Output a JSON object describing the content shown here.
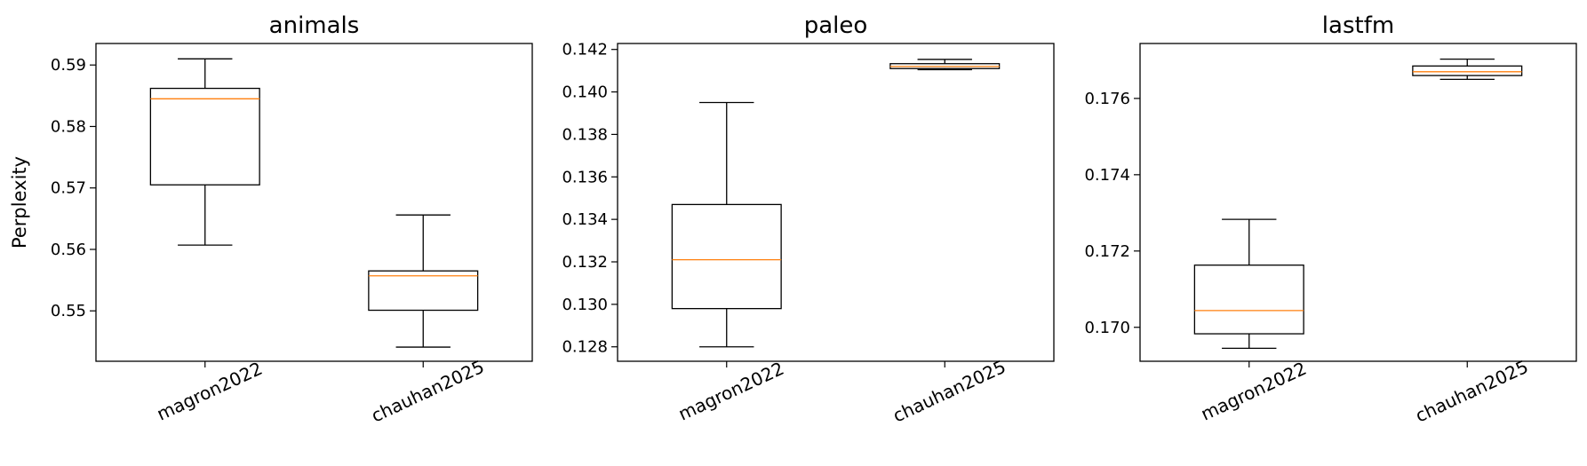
{
  "chart_data": [
    {
      "type": "box",
      "title": "animals",
      "ylabel": "Perplexity",
      "xlabel": "",
      "categories": [
        "magron2022",
        "chauhan2025"
      ],
      "ylim": [
        0.5418,
        0.5935
      ],
      "yticks": [
        0.55,
        0.56,
        0.57,
        0.58,
        0.59
      ],
      "ytick_labels": [
        "0.55",
        "0.56",
        "0.57",
        "0.58",
        "0.59"
      ],
      "boxes": [
        {
          "whisker_low": 0.5607,
          "q1": 0.5705,
          "median": 0.5845,
          "q3": 0.5862,
          "whisker_high": 0.591
        },
        {
          "whisker_low": 0.5441,
          "q1": 0.5501,
          "median": 0.5557,
          "q3": 0.5565,
          "whisker_high": 0.5656
        }
      ],
      "grid": false
    },
    {
      "type": "box",
      "title": "paleo",
      "ylabel": "",
      "xlabel": "",
      "categories": [
        "magron2022",
        "chauhan2025"
      ],
      "ylim": [
        0.12732,
        0.14228
      ],
      "yticks": [
        0.128,
        0.13,
        0.132,
        0.134,
        0.136,
        0.138,
        0.14,
        0.142
      ],
      "ytick_labels": [
        "0.128",
        "0.130",
        "0.132",
        "0.134",
        "0.136",
        "0.138",
        "0.140",
        "0.142"
      ],
      "boxes": [
        {
          "whisker_low": 0.128,
          "q1": 0.1298,
          "median": 0.1321,
          "q3": 0.1347,
          "whisker_high": 0.1395
        },
        {
          "whisker_low": 0.14105,
          "q1": 0.1411,
          "median": 0.1412,
          "q3": 0.14133,
          "whisker_high": 0.14153
        }
      ],
      "grid": false
    },
    {
      "type": "box",
      "title": "lastfm",
      "ylabel": "",
      "xlabel": "",
      "categories": [
        "magron2022",
        "chauhan2025"
      ],
      "ylim": [
        0.16911,
        0.17744
      ],
      "yticks": [
        0.17,
        0.172,
        0.174,
        0.176
      ],
      "ytick_labels": [
        "0.170",
        "0.172",
        "0.174",
        "0.176"
      ],
      "boxes": [
        {
          "whisker_low": 0.16945,
          "q1": 0.16983,
          "median": 0.17044,
          "q3": 0.17163,
          "whisker_high": 0.17283
        },
        {
          "whisker_low": 0.1765,
          "q1": 0.1766,
          "median": 0.1767,
          "q3": 0.17685,
          "whisker_high": 0.17703
        }
      ],
      "grid": false
    }
  ],
  "colors": {
    "box_edge": "#000000",
    "median": "#ff7f0e",
    "axes": "#000000",
    "background": "#ffffff"
  }
}
